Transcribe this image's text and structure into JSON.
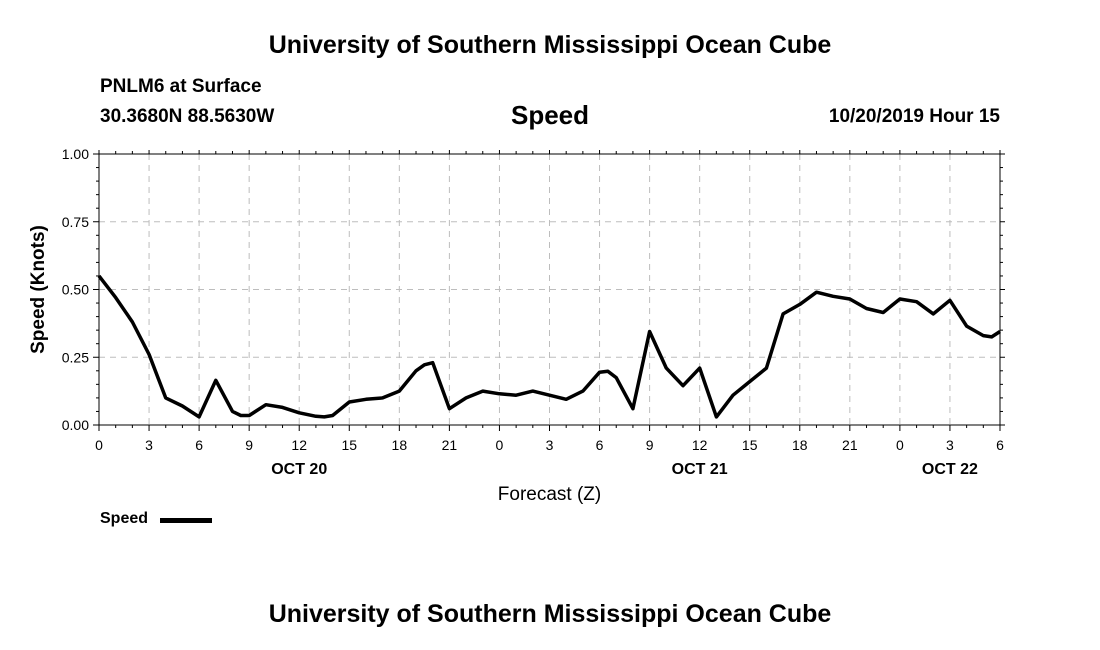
{
  "header": {
    "title": "University of Southern Mississippi Ocean Cube",
    "station": "PNLM6 at Surface",
    "coords": "30.3680N 88.5630W",
    "chart_name": "Speed",
    "valid_time": "10/20/2019 Hour 15"
  },
  "footer": {
    "title": "University of Southern Mississippi Ocean Cube"
  },
  "legend": {
    "label": "Speed",
    "color": "#000000"
  },
  "chart_data": {
    "type": "line",
    "title": "Speed",
    "xlabel": "Forecast (Z)",
    "ylabel": "Speed (Knots)",
    "xlim": [
      0,
      54
    ],
    "ylim": [
      0,
      1
    ],
    "grid": true,
    "yticks": [
      0,
      0.25,
      0.5,
      0.75,
      1
    ],
    "ytick_labels": [
      "0.00",
      "0.25",
      "0.50",
      "0.75",
      "1.00"
    ],
    "xticks": [
      0,
      3,
      6,
      9,
      12,
      15,
      18,
      21,
      24,
      27,
      30,
      33,
      36,
      39,
      42,
      45,
      48,
      51,
      54
    ],
    "xtick_labels": [
      "0",
      "3",
      "6",
      "9",
      "12",
      "15",
      "18",
      "21",
      "0",
      "3",
      "6",
      "9",
      "12",
      "15",
      "18",
      "21",
      "0",
      "3",
      "6"
    ],
    "date_labels": [
      {
        "x": 12,
        "label": "OCT 20"
      },
      {
        "x": 36,
        "label": "OCT 21"
      },
      {
        "x": 51,
        "label": "OCT 22"
      }
    ],
    "series": [
      {
        "name": "Speed",
        "x": [
          0,
          1,
          2,
          3,
          4,
          5,
          6,
          7,
          8,
          8.5,
          9,
          10,
          11,
          12,
          13,
          13.5,
          14,
          15,
          16,
          17,
          18,
          19,
          19.5,
          20,
          21,
          22,
          23,
          24,
          25,
          26,
          27,
          28,
          29,
          30,
          30.5,
          31,
          32,
          33,
          34,
          35,
          36,
          37,
          38,
          39,
          40,
          41,
          42,
          43,
          44,
          45,
          46,
          47,
          48,
          49,
          50,
          51,
          52,
          53,
          53.5,
          54
        ],
        "values": [
          0.55,
          0.47,
          0.38,
          0.26,
          0.1,
          0.07,
          0.03,
          0.165,
          0.05,
          0.035,
          0.035,
          0.075,
          0.065,
          0.045,
          0.032,
          0.03,
          0.035,
          0.085,
          0.095,
          0.1,
          0.125,
          0.2,
          0.222,
          0.23,
          0.06,
          0.1,
          0.125,
          0.115,
          0.11,
          0.125,
          0.11,
          0.095,
          0.125,
          0.195,
          0.198,
          0.175,
          0.06,
          0.345,
          0.21,
          0.145,
          0.21,
          0.03,
          0.11,
          0.16,
          0.21,
          0.41,
          0.445,
          0.49,
          0.475,
          0.465,
          0.43,
          0.415,
          0.465,
          0.455,
          0.41,
          0.46,
          0.365,
          0.33,
          0.325,
          0.345
        ]
      }
    ]
  }
}
